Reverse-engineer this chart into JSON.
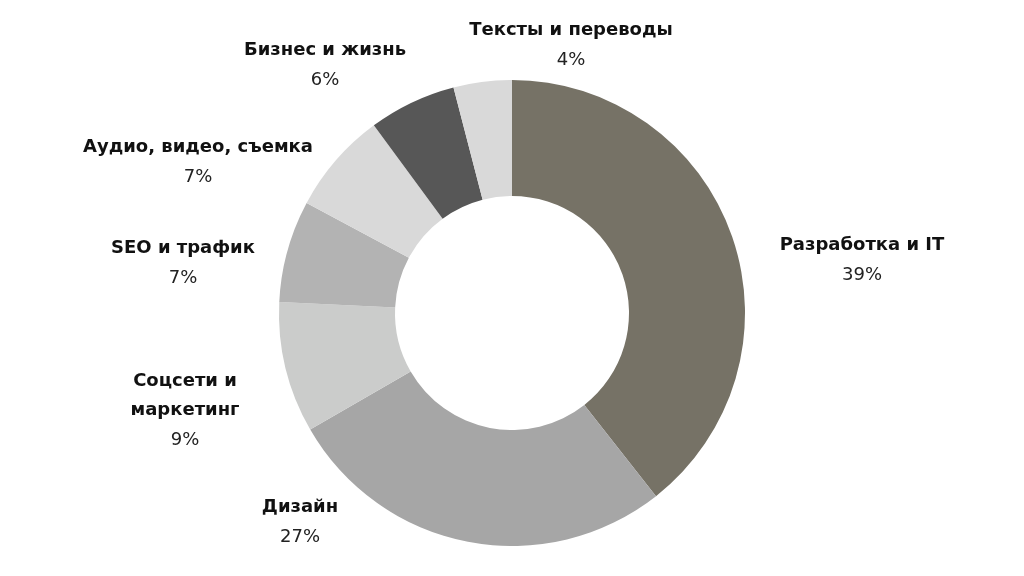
{
  "chart_data": {
    "type": "donut",
    "categories": [
      "Разработка и IT",
      "Дизайн",
      "Соцсети и маркетинг",
      "SEO и трафик",
      "Аудио, видео, съемка",
      "Бизнес и жизнь",
      "Тексты и переводы"
    ],
    "values": [
      39,
      27,
      9,
      7,
      7,
      6,
      4
    ],
    "value_labels": [
      "39%",
      "27%",
      "9%",
      "7%",
      "7%",
      "6%",
      "4%"
    ],
    "colors": [
      "#767266",
      "#a6a6a6",
      "#cbcccb",
      "#b3b3b3",
      "#d9d9d9",
      "#575757",
      "#d9d9d9"
    ]
  }
}
